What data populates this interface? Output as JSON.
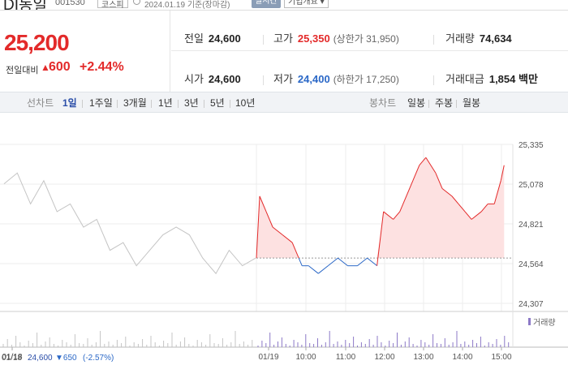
{
  "header": {
    "stock_name": "DI동일",
    "code": "001530",
    "market_badge": "코스피",
    "date_text": "2024.01.19 기준(장마감)",
    "realtime_badge": "실시간",
    "company_info_label": "기업개요 ▾"
  },
  "quote": {
    "price": "25,200",
    "vs_label": "전일대비",
    "change": "600",
    "rate": "+2.44%",
    "direction_icon": "up-triangle-icon"
  },
  "stats": {
    "prev_close_label": "전일",
    "prev_close": "24,600",
    "high_label": "고가",
    "high": "25,350",
    "upper_limit": "(상한가 31,950)",
    "volume_label": "거래량",
    "volume": "74,634",
    "open_label": "시가",
    "open": "24,600",
    "low_label": "저가",
    "low": "24,400",
    "lower_limit": "(하한가 17,250)",
    "amount_label": "거래대금",
    "amount": "1,854 백만"
  },
  "toolbar": {
    "line_chart_label": "선차트",
    "periods": [
      "1일",
      "1주일",
      "3개월",
      "1년",
      "3년",
      "5년",
      "10년"
    ],
    "active_period": "1일",
    "candle_chart_label": "봉차트",
    "candles": [
      "일봉",
      "주봉",
      "월봉"
    ]
  },
  "colors": {
    "up": "#e32a2a",
    "down": "#2b68c7",
    "prev_day": "#c4c4c4",
    "up_fill": "#fde1e1",
    "volume_today": "#8c79c7"
  },
  "chart_data": {
    "type": "line",
    "ylim": [
      24307,
      25335
    ],
    "y_ticks": [
      "25,335",
      "25,078",
      "24,821",
      "24,564",
      "24,307"
    ],
    "x_ticks": [
      "01/18",
      "01/19",
      "10:00",
      "11:00",
      "12:00",
      "13:00",
      "14:00",
      "15:00"
    ],
    "base_price": 24600,
    "prev_day_footer": {
      "date": "01/18",
      "close": "24,600",
      "change": "▼650",
      "rate": "(-2.57%)"
    },
    "volume_legend": "거래량",
    "series": [
      {
        "x": [
          "01/18",
          "01/18",
          "01/18",
          "01/18",
          "01/18",
          "01/18",
          "01/18",
          "01/18",
          "01/18",
          "01/18",
          "01/18",
          "01/18",
          "01/18",
          "01/18",
          "01/18",
          "01/18",
          "01/18",
          "01/18",
          "01/18",
          "01/18"
        ],
        "values": [
          25080,
          25150,
          24950,
          25100,
          24900,
          24950,
          24800,
          24850,
          24650,
          24700,
          24550,
          24650,
          24750,
          24800,
          24750,
          24600,
          24500,
          24650,
          24550,
          24600
        ]
      },
      {
        "x": [
          "09:00",
          "09:05",
          "09:15",
          "09:25",
          "09:40",
          "09:55",
          "10:05",
          "10:10",
          "10:20",
          "10:35",
          "10:50",
          "11:05",
          "11:20",
          "11:35",
          "11:50",
          "12:05",
          "12:15",
          "12:30",
          "12:40",
          "13:00",
          "13:10",
          "13:20",
          "13:35",
          "13:45",
          "14:00",
          "14:10",
          "14:20",
          "14:30",
          "14:45",
          "14:55",
          "15:05",
          "15:15",
          "15:20"
        ],
        "values": [
          24600,
          25000,
          24900,
          24800,
          24750,
          24700,
          24600,
          24550,
          24550,
          24500,
          24550,
          24600,
          24550,
          24550,
          24600,
          24550,
          24900,
          24850,
          24900,
          25100,
          25200,
          25250,
          25150,
          25050,
          25000,
          24950,
          24900,
          24850,
          24900,
          24950,
          24950,
          25100,
          25200
        ]
      }
    ]
  }
}
